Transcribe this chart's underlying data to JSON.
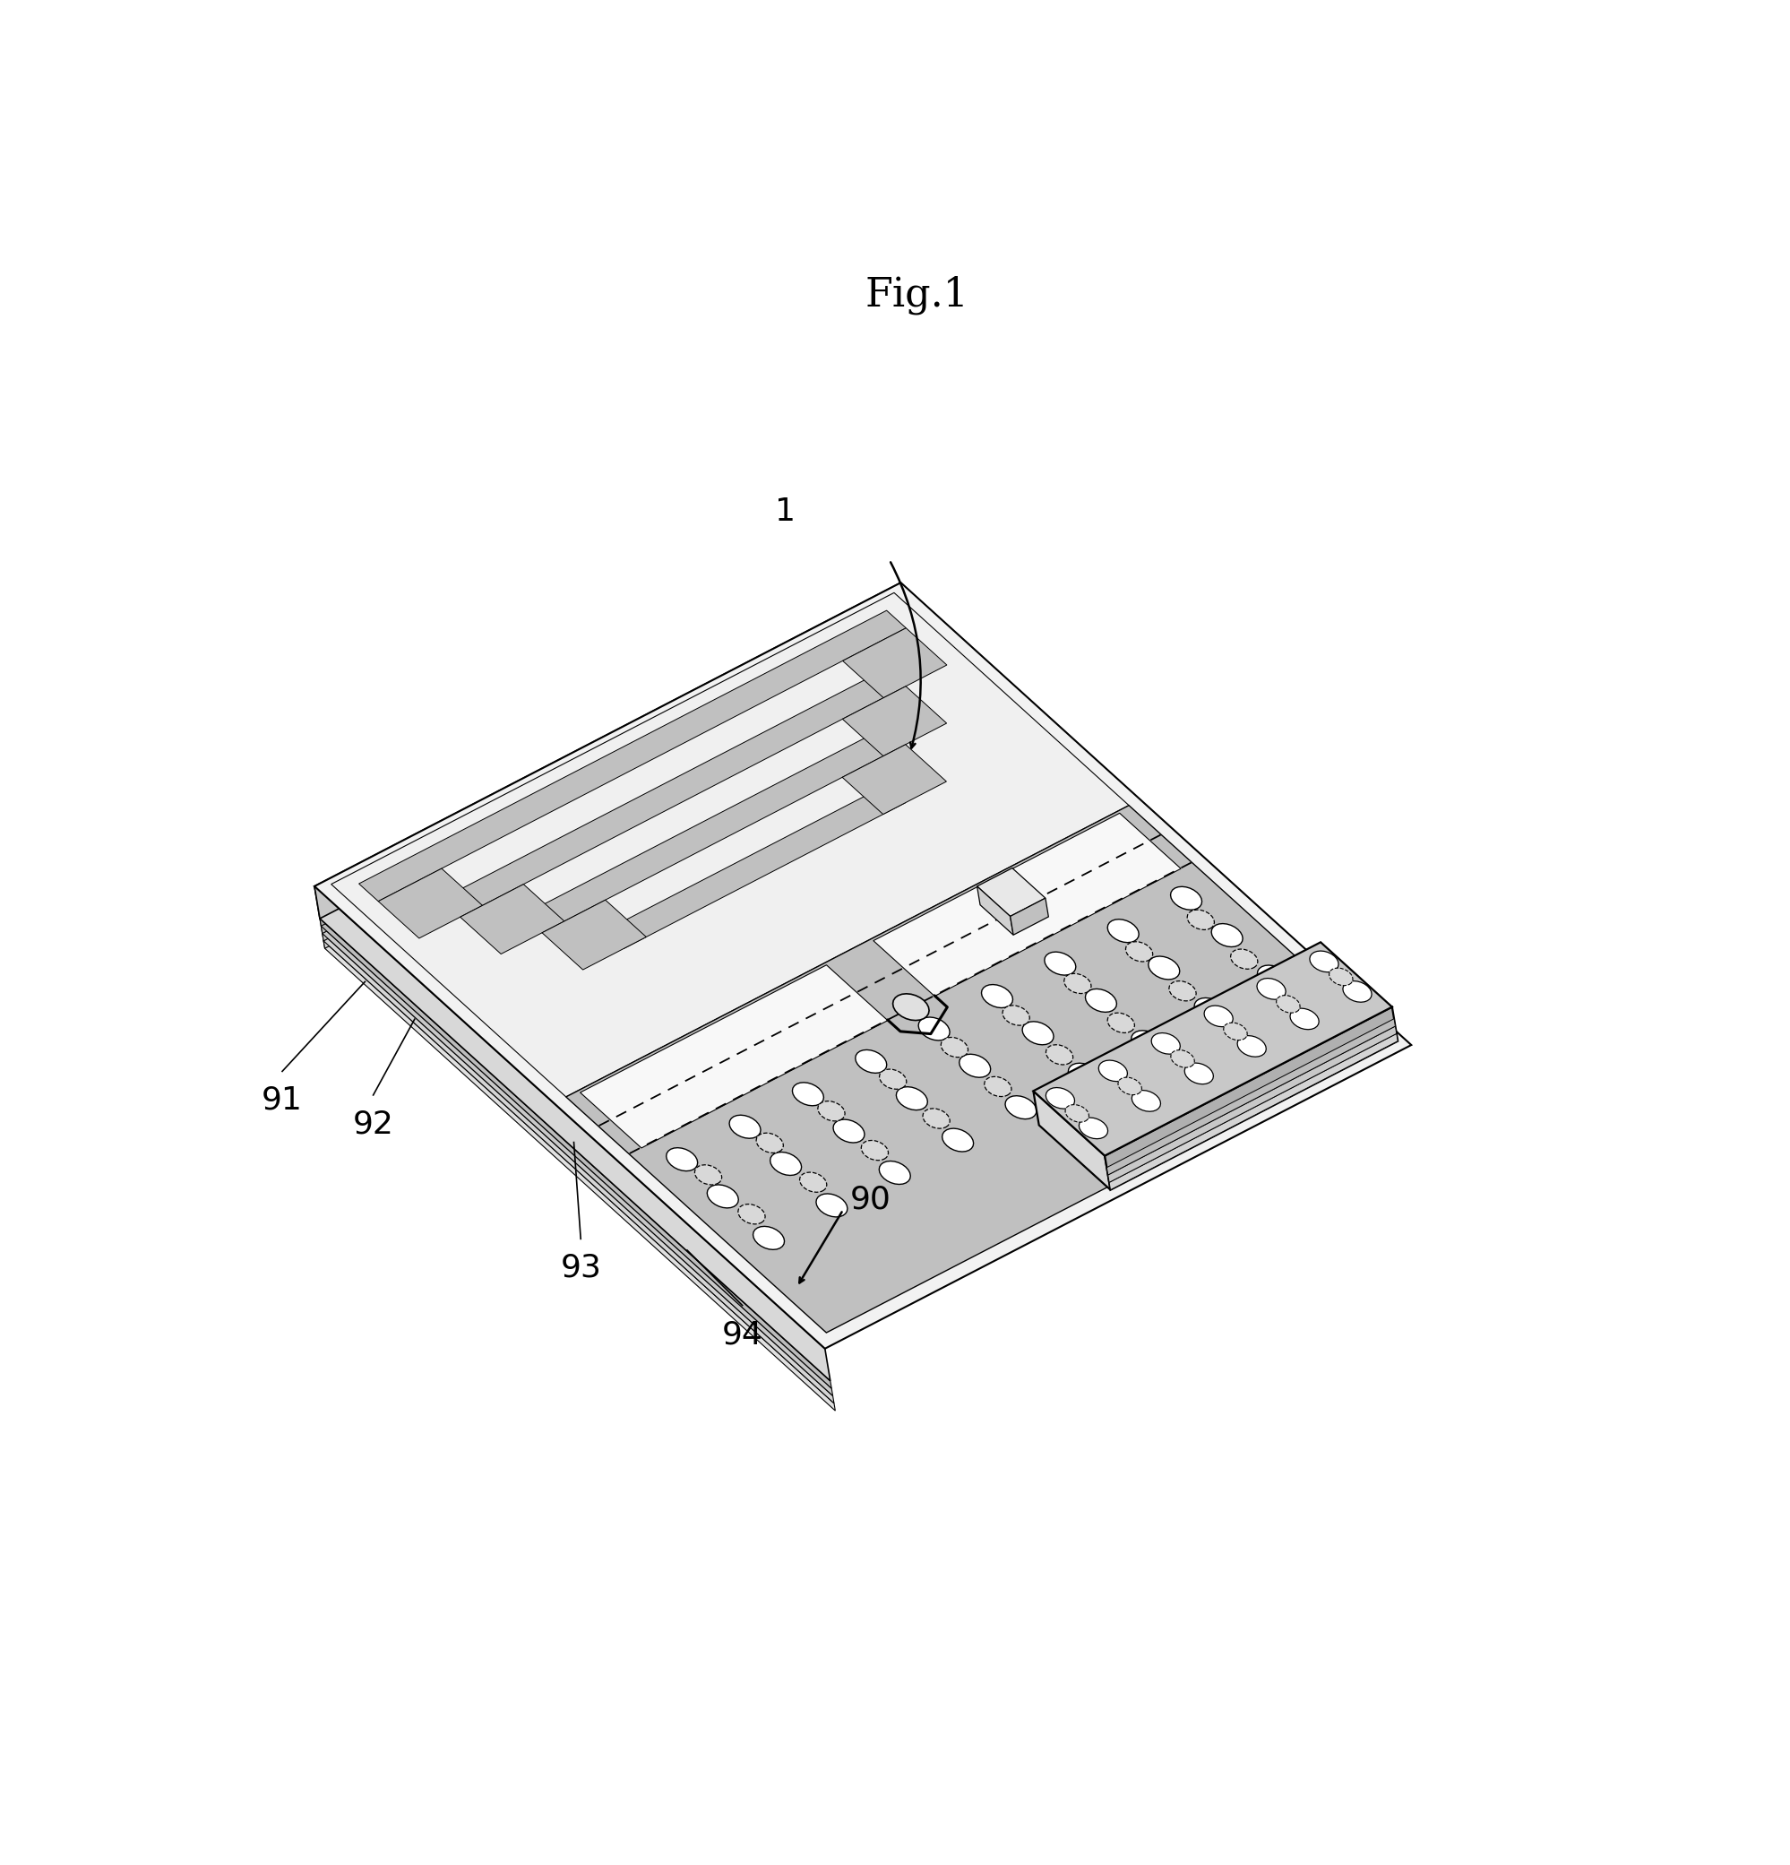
{
  "title": "Fig.1",
  "bg": "#ffffff",
  "black": "#000000",
  "gray_top": "#f0f0f0",
  "gray_ant": "#c8c8c8",
  "gray_gnd": "#c0c0c0",
  "gray_slot": "#f8f8f8",
  "gray_front": "#d0d0d0",
  "gray_left": "#b8b8b8",
  "gray_layer1": "#e0e0e0",
  "gray_layer2": "#d4d4d4",
  "gray_layer3": "#c8c8c8",
  "gray_layer4": "#bcbcbc",
  "via_fill": "#ffffff",
  "via_dashed_fill": "#d8d8d8",
  "meander_fill": "#c0c0c0",
  "chip_top": "#e8e8e8",
  "chip_front": "#d0d0d0",
  "chip_side": "#c0c0c0",
  "flap_top": "#c8c8c8",
  "flap_front": "#d8d8d8",
  "flap_right": "#b0b0b0",
  "label_1": "1",
  "label_90": "90",
  "label_91": "91",
  "label_92": "92",
  "label_93": "93",
  "label_94": "94",
  "font_size": 26,
  "title_font_size": 32,
  "lw": 1.6
}
